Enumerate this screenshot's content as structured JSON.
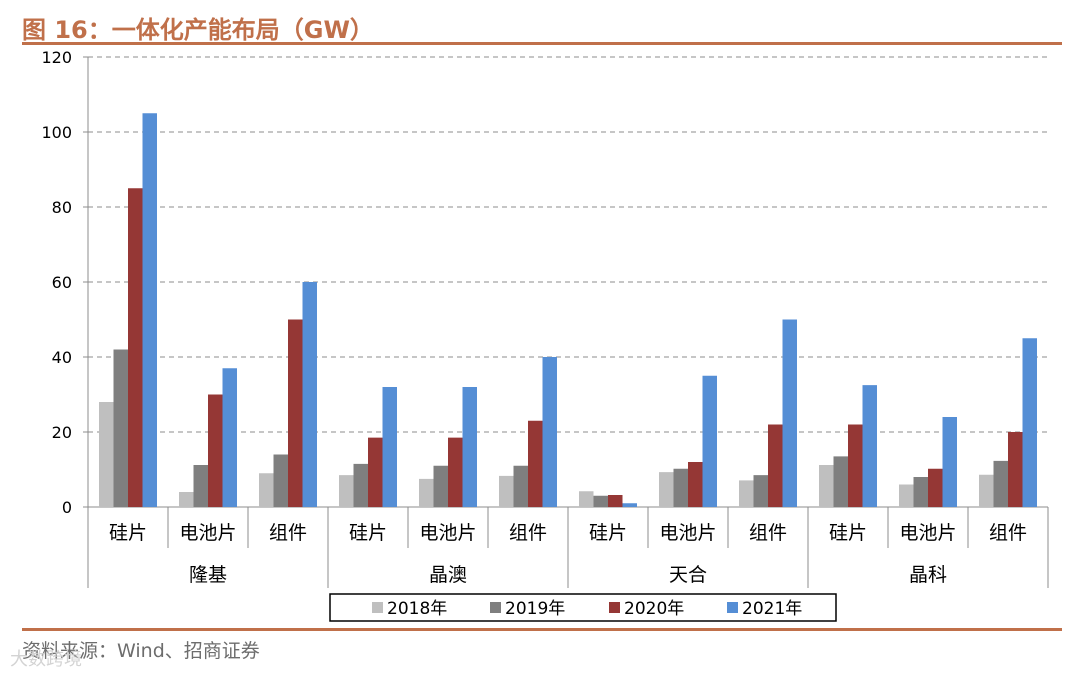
{
  "title": "图 16：一体化产能布局（GW）",
  "source": "资料来源：Wind、招商证券",
  "watermark": "大数跨境",
  "chart_data": {
    "type": "bar",
    "title": "图 16：一体化产能布局（GW）",
    "ylabel": "GW",
    "ylim": [
      0,
      120
    ],
    "yticks": [
      0,
      20,
      40,
      60,
      80,
      100,
      120
    ],
    "grid": true,
    "legend_position": "bottom",
    "groups": [
      {
        "name": "隆基",
        "categories": [
          "硅片",
          "电池片",
          "组件"
        ]
      },
      {
        "name": "晶澳",
        "categories": [
          "硅片",
          "电池片",
          "组件"
        ]
      },
      {
        "name": "天合",
        "categories": [
          "硅片",
          "电池片",
          "组件"
        ]
      },
      {
        "name": "晶科",
        "categories": [
          "硅片",
          "电池片",
          "组件"
        ]
      }
    ],
    "series": [
      {
        "name": "2018年",
        "color": "#bfbfbf",
        "values": [
          28,
          4,
          9,
          8.5,
          7.5,
          8.3,
          4.2,
          9.3,
          7.1,
          11.2,
          6,
          8.6
        ]
      },
      {
        "name": "2019年",
        "color": "#7f7f7f",
        "values": [
          42,
          11.2,
          14,
          11.5,
          11,
          11,
          3,
          10.2,
          8.5,
          13.5,
          8,
          12.3
        ]
      },
      {
        "name": "2020年",
        "color": "#953735",
        "values": [
          85,
          30,
          50,
          18.5,
          18.5,
          23,
          3.2,
          12,
          22,
          22,
          10.2,
          20
        ]
      },
      {
        "name": "2021年",
        "color": "#558ed5",
        "values": [
          105,
          37,
          60,
          32,
          32,
          40,
          1,
          35,
          50,
          32.5,
          24,
          45
        ]
      }
    ]
  }
}
